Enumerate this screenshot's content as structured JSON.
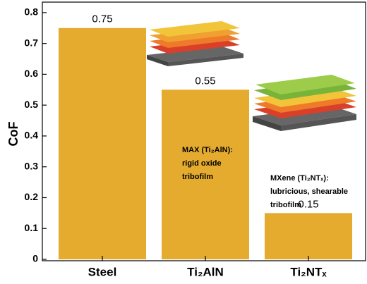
{
  "chart_data": {
    "type": "bar",
    "y_label": "CoF",
    "categories": [
      "Steel",
      "Ti₂AlN",
      "Ti₂NTₓ"
    ],
    "values": [
      0.75,
      0.55,
      0.15
    ],
    "color": "#e5ab2f",
    "ylim": [
      0,
      0.834
    ],
    "yticks": [
      0.0,
      0.1,
      0.2,
      0.3,
      0.4,
      0.5,
      0.6,
      0.7,
      0.8
    ],
    "annotations": [
      {
        "lines": [
          "MAX (Ti₂AlN):",
          "rigid oxide",
          "tribofilm"
        ]
      },
      {
        "lines": [
          "MXene (Ti₂NTₓ):",
          "lubricious, shearable",
          " tribofilm"
        ]
      }
    ]
  }
}
